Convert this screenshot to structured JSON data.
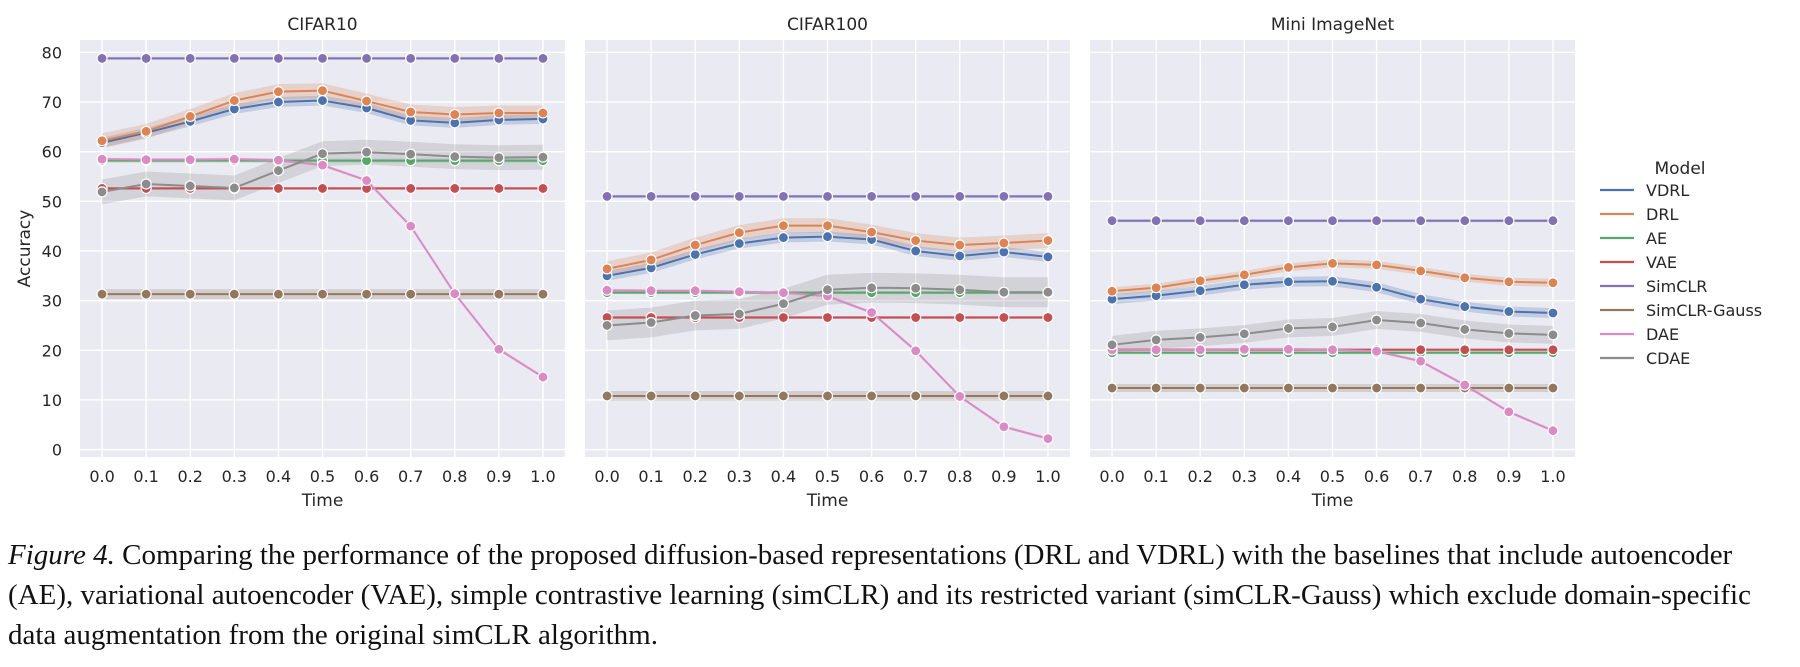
{
  "chart_data": [
    {
      "type": "line",
      "title": "CIFAR10",
      "xlabel": "Time",
      "ylabel": "Accuracy",
      "x": [
        0.0,
        0.1,
        0.2,
        0.3,
        0.4,
        0.5,
        0.6,
        0.7,
        0.8,
        0.9,
        1.0
      ],
      "x_ticks": [
        "0.0",
        "0.1",
        "0.2",
        "0.3",
        "0.4",
        "0.5",
        "0.6",
        "0.7",
        "0.8",
        "0.9",
        "1.0"
      ],
      "y_ticks": [
        "0",
        "10",
        "20",
        "30",
        "40",
        "50",
        "60",
        "70",
        "80"
      ],
      "ylim": [
        -1.5,
        82.5
      ],
      "grid": true,
      "series": [
        {
          "name": "VDRL",
          "values": [
            61.8,
            63.8,
            66.1,
            68.6,
            70.0,
            70.3,
            68.8,
            66.3,
            65.8,
            66.4,
            66.6
          ],
          "band": 1.0
        },
        {
          "name": "DRL",
          "values": [
            62.2,
            64.1,
            67.1,
            70.3,
            72.1,
            72.3,
            70.2,
            68.0,
            67.5,
            67.8,
            67.8
          ],
          "band": 1.5
        },
        {
          "name": "AE",
          "values": [
            58.2,
            58.2,
            58.2,
            58.2,
            58.2,
            58.2,
            58.2,
            58.2,
            58.2,
            58.2,
            58.2
          ],
          "band": 0.4
        },
        {
          "name": "VAE",
          "values": [
            52.6,
            52.6,
            52.6,
            52.6,
            52.6,
            52.6,
            52.6,
            52.6,
            52.6,
            52.6,
            52.6
          ],
          "band": 0.3
        },
        {
          "name": "SimCLR",
          "values": [
            78.8,
            78.8,
            78.8,
            78.8,
            78.8,
            78.8,
            78.8,
            78.8,
            78.8,
            78.8,
            78.8
          ],
          "band": 0.3
        },
        {
          "name": "SimCLR-Gauss",
          "values": [
            31.3,
            31.3,
            31.3,
            31.3,
            31.3,
            31.3,
            31.3,
            31.3,
            31.3,
            31.3,
            31.3
          ],
          "band": 1.0
        },
        {
          "name": "DAE",
          "values": [
            58.5,
            58.4,
            58.4,
            58.5,
            58.3,
            57.3,
            54.2,
            45.0,
            31.4,
            20.2,
            14.6
          ],
          "band": 0.3
        },
        {
          "name": "CDAE",
          "values": [
            51.9,
            53.5,
            53.1,
            52.7,
            56.2,
            59.6,
            59.9,
            59.5,
            59.0,
            58.8,
            58.9
          ],
          "band": 2.5
        }
      ]
    },
    {
      "type": "line",
      "title": "CIFAR100",
      "xlabel": "Time",
      "ylabel": "",
      "x": [
        0.0,
        0.1,
        0.2,
        0.3,
        0.4,
        0.5,
        0.6,
        0.7,
        0.8,
        0.9,
        1.0
      ],
      "x_ticks": [
        "0.0",
        "0.1",
        "0.2",
        "0.3",
        "0.4",
        "0.5",
        "0.6",
        "0.7",
        "0.8",
        "0.9",
        "1.0"
      ],
      "y_ticks": [],
      "ylim": [
        -1.5,
        82.5
      ],
      "grid": true,
      "series": [
        {
          "name": "VDRL",
          "values": [
            35.0,
            36.6,
            39.3,
            41.5,
            42.7,
            42.9,
            42.3,
            40.0,
            39.0,
            39.8,
            38.8
          ],
          "band": 1.0
        },
        {
          "name": "DRL",
          "values": [
            36.4,
            38.2,
            41.2,
            43.7,
            45.1,
            45.1,
            43.8,
            42.1,
            41.2,
            41.6,
            42.1
          ],
          "band": 1.5
        },
        {
          "name": "AE",
          "values": [
            31.6,
            31.6,
            31.6,
            31.6,
            31.6,
            31.6,
            31.6,
            31.6,
            31.6,
            31.6,
            31.6
          ],
          "band": 0.3
        },
        {
          "name": "VAE",
          "values": [
            26.6,
            26.6,
            26.6,
            26.6,
            26.6,
            26.6,
            26.6,
            26.6,
            26.6,
            26.6,
            26.6
          ],
          "band": 0.3
        },
        {
          "name": "SimCLR",
          "values": [
            51.0,
            51.0,
            51.0,
            51.0,
            51.0,
            51.0,
            51.0,
            51.0,
            51.0,
            51.0,
            51.0
          ],
          "band": 0.3
        },
        {
          "name": "SimCLR-Gauss",
          "values": [
            10.8,
            10.8,
            10.8,
            10.8,
            10.8,
            10.8,
            10.8,
            10.8,
            10.8,
            10.8,
            10.8
          ],
          "band": 1.0
        },
        {
          "name": "DAE",
          "values": [
            32.1,
            32.0,
            32.0,
            31.8,
            31.6,
            30.9,
            27.6,
            19.9,
            10.7,
            4.6,
            2.2
          ],
          "band": 0.3
        },
        {
          "name": "CDAE",
          "values": [
            25.0,
            25.6,
            27.0,
            27.3,
            29.4,
            32.2,
            32.6,
            32.5,
            32.2,
            31.7,
            31.7
          ],
          "band": 3.0
        }
      ]
    },
    {
      "type": "line",
      "title": "Mini ImageNet",
      "xlabel": "Time",
      "ylabel": "",
      "x": [
        0.0,
        0.1,
        0.2,
        0.3,
        0.4,
        0.5,
        0.6,
        0.7,
        0.8,
        0.9,
        1.0
      ],
      "x_ticks": [
        "0.0",
        "0.1",
        "0.2",
        "0.3",
        "0.4",
        "0.5",
        "0.6",
        "0.7",
        "0.8",
        "0.9",
        "1.0"
      ],
      "y_ticks": [],
      "ylim": [
        -1.5,
        82.5
      ],
      "grid": true,
      "series": [
        {
          "name": "VDRL",
          "values": [
            30.3,
            31.0,
            32.0,
            33.2,
            33.8,
            33.9,
            32.7,
            30.3,
            28.8,
            27.8,
            27.5
          ],
          "band": 1.0
        },
        {
          "name": "DRL",
          "values": [
            31.9,
            32.6,
            34.0,
            35.2,
            36.7,
            37.5,
            37.2,
            36.0,
            34.6,
            33.8,
            33.6
          ],
          "band": 0.8
        },
        {
          "name": "AE",
          "values": [
            19.5,
            19.5,
            19.5,
            19.5,
            19.5,
            19.5,
            19.5,
            19.5,
            19.5,
            19.5,
            19.5
          ],
          "band": 0.3
        },
        {
          "name": "VAE",
          "values": [
            20.1,
            20.1,
            20.1,
            20.1,
            20.1,
            20.1,
            20.1,
            20.1,
            20.1,
            20.1,
            20.1
          ],
          "band": 0.3
        },
        {
          "name": "SimCLR",
          "values": [
            46.1,
            46.1,
            46.1,
            46.1,
            46.1,
            46.1,
            46.1,
            46.1,
            46.1,
            46.1,
            46.1
          ],
          "band": 0.3
        },
        {
          "name": "SimCLR-Gauss",
          "values": [
            12.4,
            12.4,
            12.4,
            12.4,
            12.4,
            12.4,
            12.4,
            12.4,
            12.4,
            12.4,
            12.4
          ],
          "band": 0.8
        },
        {
          "name": "DAE",
          "values": [
            20.1,
            20.1,
            20.1,
            20.2,
            20.2,
            20.1,
            19.8,
            17.8,
            13.0,
            7.6,
            3.8
          ],
          "band": 0.3
        },
        {
          "name": "CDAE",
          "values": [
            21.1,
            22.1,
            22.6,
            23.3,
            24.4,
            24.7,
            26.1,
            25.5,
            24.2,
            23.4,
            23.1
          ],
          "band": 1.8
        }
      ]
    }
  ],
  "legend": {
    "title": "Model",
    "position": "right",
    "entries": [
      "VDRL",
      "DRL",
      "AE",
      "VAE",
      "SimCLR",
      "SimCLR-Gauss",
      "DAE",
      "CDAE"
    ]
  },
  "colors": {
    "VDRL": "#4c72b0",
    "DRL": "#dd8452",
    "AE": "#55a868",
    "VAE": "#c44e52",
    "SimCLR": "#8172b3",
    "SimCLR-Gauss": "#937860",
    "DAE": "#da8bc3",
    "CDAE": "#8c8c8c",
    "panel_bg": "#eaeaf2",
    "grid": "#ffffff"
  },
  "caption": {
    "label": "Figure 4.",
    "text": " Comparing the performance of the proposed diffusion-based representations (DRL and VDRL) with the baselines that include autoencoder (AE), variational autoencoder (VAE), simple contrastive learning (simCLR) and its restricted variant (simCLR-Gauss) which exclude domain-specific data augmentation from the original simCLR algorithm."
  }
}
